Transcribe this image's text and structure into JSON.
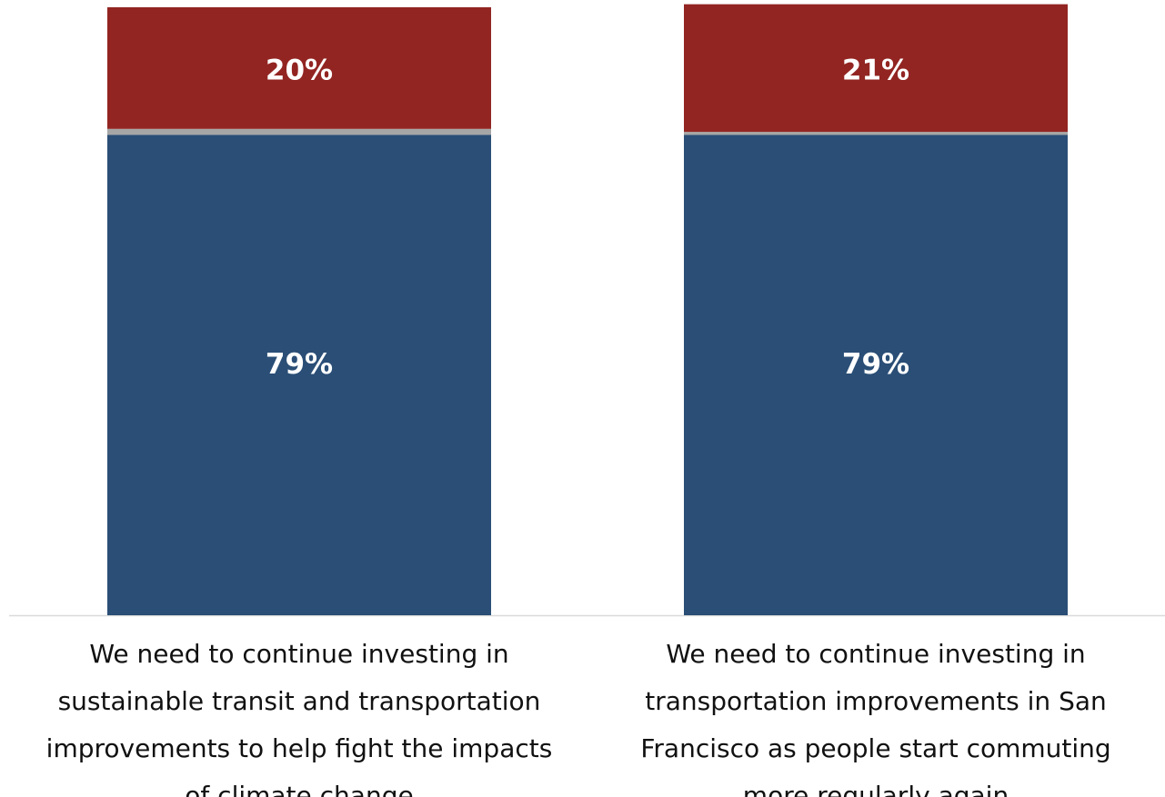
{
  "chart_data": {
    "type": "stacked_bar",
    "categories": [
      "We need to continue investing in\nsustainable transit and transportation\nimprovements to help fight the impacts\nof climate change",
      "We need to continue investing in\ntransportation improvements in San\nFrancisco as people start commuting\nmore regularly again"
    ],
    "series": [
      {
        "color": "#2a4e76",
        "values": [
          79,
          79
        ],
        "value_labels": [
          "79%",
          "79%"
        ]
      },
      {
        "color": "#a6a6a6",
        "values": [
          1,
          0.5
        ]
      },
      {
        "color": "#922522",
        "values": [
          20,
          21
        ],
        "value_labels": [
          "20%",
          "21%"
        ]
      }
    ],
    "ylim": [
      0,
      100
    ]
  }
}
